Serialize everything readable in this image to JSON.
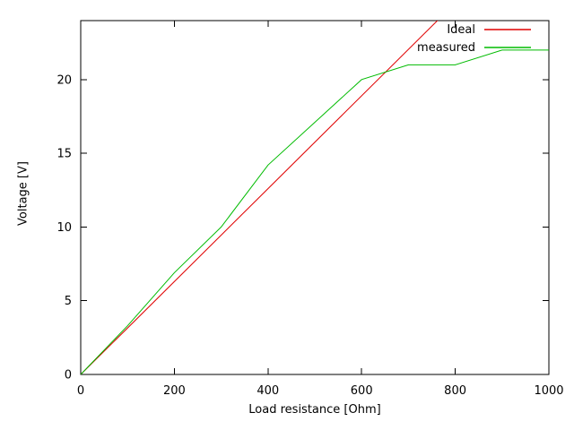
{
  "chart_data": {
    "type": "line",
    "title": "",
    "xlabel": "Load resistance [Ohm]",
    "ylabel": "Voltage [V]",
    "xlim": [
      0,
      1000
    ],
    "ylim": [
      0,
      24
    ],
    "x_ticks": [
      0,
      200,
      400,
      600,
      800,
      1000
    ],
    "y_ticks": [
      0,
      5,
      10,
      15,
      20
    ],
    "grid": false,
    "legend_position": "top-right-inside",
    "background_color": "#ffffff",
    "border_color": "#000000",
    "text_color": "#000000",
    "series": [
      {
        "name": "Ideal",
        "color": "#e00000",
        "points": [
          [
            0,
            0
          ],
          [
            1000,
            31.5
          ]
        ]
      },
      {
        "name": "measured",
        "color": "#00bb00",
        "points": [
          [
            0,
            0
          ],
          [
            100,
            3.3
          ],
          [
            200,
            6.9
          ],
          [
            300,
            10
          ],
          [
            400,
            14.2
          ],
          [
            600,
            20
          ],
          [
            700,
            21
          ],
          [
            800,
            21
          ],
          [
            900,
            22
          ],
          [
            1000,
            22
          ]
        ]
      }
    ]
  }
}
